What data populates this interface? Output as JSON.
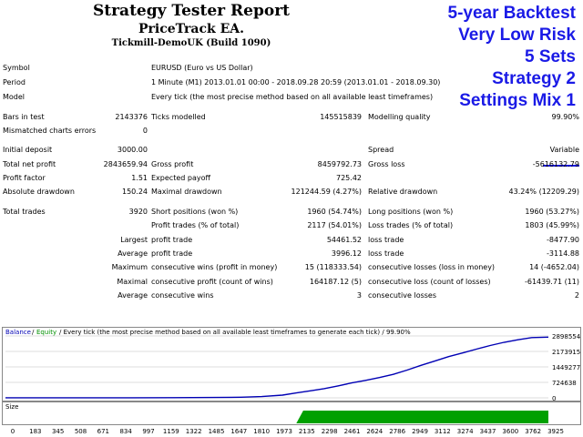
{
  "header": {
    "title": "Strategy Tester Report",
    "ea_name": "PriceTrack EA.",
    "server": "Tickmill-DemoUK (Build 1090)"
  },
  "overlay": [
    "5-year Backtest",
    "Very Low Risk",
    "5 Sets",
    "Strategy 2",
    "Settings Mix 1"
  ],
  "info": {
    "symbol_label": "Symbol",
    "symbol": "EURUSD (Euro vs US Dollar)",
    "period_label": "Period",
    "period": "1 Minute (M1) 2013.01.01 00:00 - 2018.09.28 20:59 (2013.01.01 - 2018.09.30)",
    "model_label": "Model",
    "model": "Every tick (the most precise method based on all available least timeframes)",
    "bars_label": "Bars in test",
    "bars": "2143376",
    "ticks_label": "Ticks modelled",
    "ticks": "145515839",
    "quality_label": "Modelling quality",
    "quality": "99.90%",
    "mismatch_label": "Mismatched charts errors",
    "mismatch": "0"
  },
  "stats": {
    "initial_deposit_label": "Initial deposit",
    "initial_deposit": "3000.00",
    "spread_label": "Spread",
    "spread": "Variable",
    "net_profit_label": "Total net profit",
    "net_profit": "2843659.94",
    "gross_profit_label": "Gross profit",
    "gross_profit": "8459792.73",
    "gross_loss_label": "Gross loss",
    "gross_loss": "-5616132.79",
    "profit_factor_label": "Profit factor",
    "profit_factor": "1.51",
    "expected_payoff_label": "Expected payoff",
    "expected_payoff": "725.42",
    "abs_dd_label": "Absolute drawdown",
    "abs_dd": "150.24",
    "max_dd_label": "Maximal drawdown",
    "max_dd": "121244.59 (4.27%)",
    "rel_dd_label": "Relative drawdown",
    "rel_dd": "43.24% (12209.29)",
    "total_trades_label": "Total trades",
    "total_trades": "3920",
    "short_label": "Short positions (won %)",
    "short": "1960 (54.74%)",
    "long_label": "Long positions (won %)",
    "long": "1960 (53.27%)",
    "profit_trades_label": "Profit trades (% of total)",
    "profit_trades": "2117 (54.01%)",
    "loss_trades_label": "Loss trades (% of total)",
    "loss_trades": "1803 (45.99%)",
    "largest_label": "Largest",
    "profit_trade_label": "profit trade",
    "largest_profit": "54461.52",
    "loss_trade_label": "loss trade",
    "largest_loss": "-8477.90",
    "average_label": "Average",
    "average_profit": "3996.12",
    "average_loss": "-3114.88",
    "maximum_label": "Maximum",
    "cons_wins_money_label": "consecutive wins (profit in money)",
    "cons_wins_money": "15 (118333.54)",
    "cons_losses_money_label": "consecutive losses (loss in money)",
    "cons_losses_money": "14 (-4652.04)",
    "maximal_label": "Maximal",
    "cons_profit_count_label": "consecutive profit (count of wins)",
    "cons_profit_count": "164187.12 (5)",
    "cons_loss_count_label": "consecutive loss (count of losses)",
    "cons_loss_count": "-61439.71 (11)",
    "cons_wins_label": "consecutive wins",
    "avg_cons_wins": "3",
    "cons_losses_label": "consecutive losses",
    "avg_cons_losses": "2"
  },
  "chart_data": {
    "type": "line",
    "legend_balance": "Balance",
    "legend_sep": "/",
    "legend_equity": "Equity",
    "legend_rest": "/ Every tick (the most precise method based on all available least timeframes to generate each tick) / 99.90%",
    "x_ticks": [
      "0",
      "183",
      "345",
      "508",
      "671",
      "834",
      "997",
      "1159",
      "1322",
      "1485",
      "1647",
      "1810",
      "1973",
      "2135",
      "2298",
      "2461",
      "2624",
      "2786",
      "2949",
      "3112",
      "3274",
      "3437",
      "3600",
      "3762",
      "3925"
    ],
    "y_ticks": [
      "2898554",
      "2173915",
      "1449277",
      "724638",
      "0"
    ],
    "size_label": "Size",
    "ylim": [
      0,
      2898554
    ],
    "xlim": [
      0,
      3920
    ],
    "series": [
      {
        "name": "Balance",
        "color": "#0000b4",
        "x": [
          0,
          300,
          600,
          900,
          1200,
          1500,
          1700,
          1850,
          2000,
          2100,
          2200,
          2300,
          2400,
          2500,
          2600,
          2700,
          2800,
          2900,
          3000,
          3100,
          3200,
          3300,
          3400,
          3500,
          3600,
          3700,
          3800,
          3920
        ],
        "y": [
          3000,
          4000,
          5000,
          6000,
          8000,
          15000,
          30000,
          60000,
          130000,
          230000,
          330000,
          430000,
          560000,
          700000,
          820000,
          950000,
          1100000,
          1300000,
          1520000,
          1720000,
          1930000,
          2100000,
          2280000,
          2450000,
          2600000,
          2720000,
          2820000,
          2843660
        ]
      }
    ],
    "volume": {
      "color": "#00a000",
      "start": 2100,
      "full": 2150,
      "end": 3920
    }
  }
}
